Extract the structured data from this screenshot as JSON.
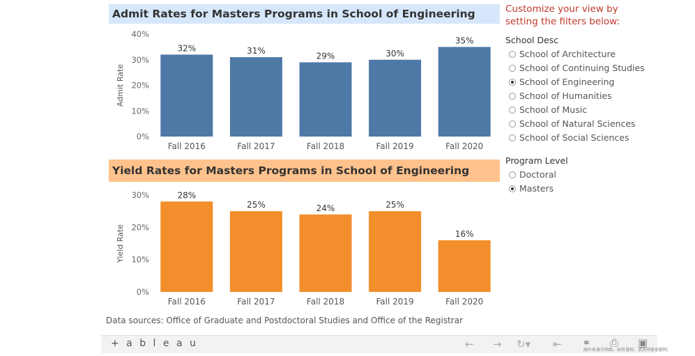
{
  "charts": {
    "admit": {
      "title": "Admit Rates for Masters Programs in School of Engineering",
      "title_bg": "#d7e7fb",
      "bar_color": "#4e79a7"
    },
    "yield": {
      "title": "Yield Rates for Masters Programs in School of Engineering",
      "title_bg": "#ffc28c",
      "bar_color": "#f28e2b"
    }
  },
  "chart_data": [
    {
      "type": "bar",
      "title": "Admit Rates for Masters Programs in School of Engineering",
      "categories": [
        "Fall 2016",
        "Fall 2017",
        "Fall 2018",
        "Fall 2019",
        "Fall 2020"
      ],
      "values": [
        32,
        31,
        29,
        30,
        35
      ],
      "value_labels": [
        "32%",
        "31%",
        "29%",
        "30%",
        "35%"
      ],
      "ylabel": "Admit Rate",
      "xlabel": "",
      "ylim": [
        0,
        40
      ],
      "yticks": [
        0,
        10,
        20,
        30,
        40
      ],
      "ytick_labels": [
        "0%",
        "10%",
        "20%",
        "30%",
        "40%"
      ],
      "grid": false
    },
    {
      "type": "bar",
      "title": "Yield Rates for Masters Programs in School of Engineering",
      "categories": [
        "Fall 2016",
        "Fall 2017",
        "Fall 2018",
        "Fall 2019",
        "Fall 2020"
      ],
      "values": [
        28,
        25,
        24,
        25,
        16
      ],
      "value_labels": [
        "28%",
        "25%",
        "24%",
        "25%",
        "16%"
      ],
      "ylabel": "Yield Rate",
      "xlabel": "",
      "ylim": [
        0,
        30
      ],
      "yticks": [
        0,
        10,
        20,
        30
      ],
      "ytick_labels": [
        "0%",
        "10%",
        "20%",
        "30%"
      ],
      "grid": false
    }
  ],
  "filters": {
    "prompt": "Customize your view by setting the filters below:",
    "school": {
      "label": "School Desc",
      "options": [
        "School of Architecture",
        "School of Continuing Studies",
        "School of Engineering",
        "School of Humanities",
        "School of Music",
        "School of Natural Sciences",
        "School of Social Sciences"
      ],
      "selected": "School of Engineering"
    },
    "program": {
      "label": "Program Level",
      "options": [
        "Doctoral",
        "Masters"
      ],
      "selected": "Masters"
    }
  },
  "source": "Data sources: Office of Graduate and Postdoctoral Studies and Office of the Registrar",
  "toolbar": {
    "logo_text": "+ a b l e a u",
    "icons": [
      "undo-icon",
      "redo-icon",
      "revert-icon",
      "reset-icon",
      "share-icon",
      "download-icon",
      "fullscreen-icon"
    ],
    "watermark": "图片来源于网络，如有侵权，请及时联系删除。"
  }
}
